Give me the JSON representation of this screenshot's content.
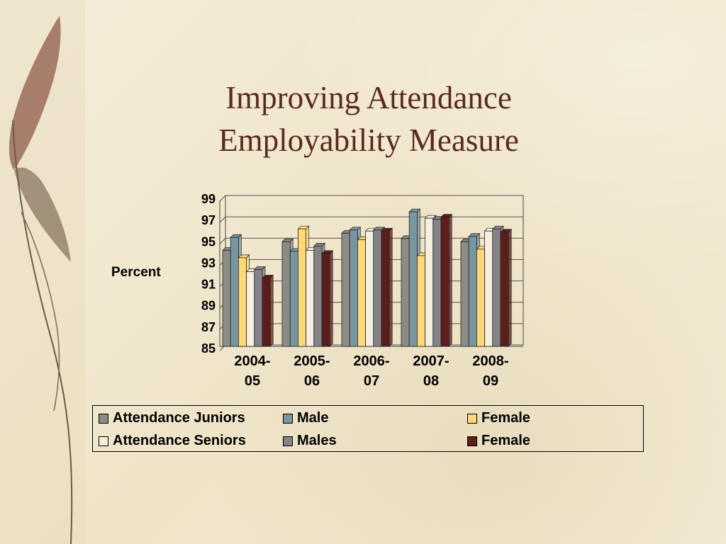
{
  "title": {
    "line1": "Improving Attendance",
    "line2": "Employability Measure"
  },
  "colors": {
    "title": "#5a2a22",
    "background": "#f3ebd6"
  },
  "legend": [
    {
      "label": "Attendance Juniors",
      "color": "#8c8c84"
    },
    {
      "label": "Male",
      "color": "#7896a0"
    },
    {
      "label": "Female",
      "color": "#ffd87a"
    },
    {
      "label": "Attendance Seniors",
      "color": "#f6efe0"
    },
    {
      "label": "Males",
      "color": "#848488"
    },
    {
      "label": "Female",
      "color": "#5c1e1a"
    }
  ],
  "chart_data": {
    "type": "bar",
    "ylabel": "Percent",
    "xlabel": "",
    "ylim": [
      85,
      99
    ],
    "yticks": [
      85,
      87,
      89,
      91,
      93,
      95,
      97,
      99
    ],
    "grid": true,
    "legend_position": "bottom",
    "categories": [
      [
        "2004-",
        "05"
      ],
      [
        "2005-",
        "06"
      ],
      [
        "2006-",
        "07"
      ],
      [
        "2007-",
        "08"
      ],
      [
        "2008-",
        "09"
      ]
    ],
    "series": [
      {
        "name": "Attendance Juniors",
        "values": [
          94.4,
          95.2,
          96.0,
          95.5,
          95.2
        ]
      },
      {
        "name": "Male",
        "values": [
          95.6,
          94.3,
          96.3,
          98.0,
          95.7
        ]
      },
      {
        "name": "Female",
        "values": [
          93.7,
          96.4,
          95.4,
          93.9,
          94.5
        ]
      },
      {
        "name": "Attendance Seniors",
        "values": [
          92.4,
          94.4,
          96.2,
          97.4,
          96.2
        ]
      },
      {
        "name": "Males",
        "values": [
          92.6,
          94.8,
          96.3,
          97.3,
          96.4
        ]
      },
      {
        "name": "Female",
        "values": [
          91.8,
          94.1,
          96.2,
          97.5,
          96.1
        ]
      }
    ]
  }
}
